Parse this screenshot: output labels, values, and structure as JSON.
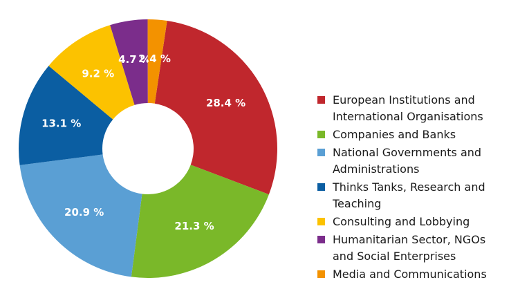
{
  "chart_data": {
    "type": "pie",
    "donut": true,
    "title": "",
    "legend_position": "right",
    "slices": [
      {
        "label": "European Institutions and International Organisations",
        "value": 28.4,
        "display": "28.4 %",
        "color": "#c0272d"
      },
      {
        "label": "Companies and Banks",
        "value": 21.3,
        "display": "21.3 %",
        "color": "#7ab829"
      },
      {
        "label": "National Governments and Administrations",
        "value": 20.9,
        "display": "20.9 %",
        "color": "#5a9fd4"
      },
      {
        "label": "Thinks Tanks, Research and Teaching",
        "value": 13.1,
        "display": "13.1 %",
        "color": "#0b5ea2"
      },
      {
        "label": "Consulting and Lobbying",
        "value": 9.2,
        "display": "9.2 %",
        "color": "#fcc200"
      },
      {
        "label": "Humanitarian Sector, NGOs and Social Enterprises",
        "value": 4.7,
        "display": "4.7 %",
        "color": "#7b2d8b"
      },
      {
        "label": "Media and Communications",
        "value": 2.4,
        "display": "2.4 %",
        "color": "#f39200"
      }
    ]
  },
  "legend": [
    {
      "lines": [
        "European Institutions and",
        "International Organisations"
      ],
      "color": "#c0272d"
    },
    {
      "lines": [
        "Companies and Banks"
      ],
      "color": "#7ab829"
    },
    {
      "lines": [
        "National Governments and",
        "Administrations"
      ],
      "color": "#5a9fd4"
    },
    {
      "lines": [
        "Thinks Tanks, Research and",
        "Teaching"
      ],
      "color": "#0b5ea2"
    },
    {
      "lines": [
        "Consulting and Lobbying"
      ],
      "color": "#fcc200"
    },
    {
      "lines": [
        "Humanitarian Sector, NGOs",
        "and Social Enterprises"
      ],
      "color": "#7b2d8b"
    },
    {
      "lines": [
        "Media and Communications"
      ],
      "color": "#f39200"
    }
  ]
}
